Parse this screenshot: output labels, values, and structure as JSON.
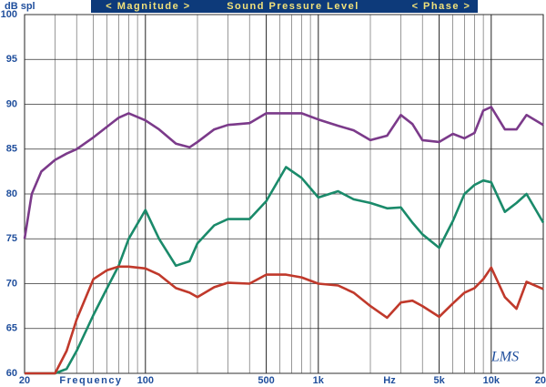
{
  "chart_data": {
    "type": "line",
    "header": [
      "< Magnitude >",
      "Sound Pressure Level",
      "< Phase >"
    ],
    "y_label": "dB spl",
    "x_label": "Frequency",
    "x_unit": "Hz",
    "logo": "LMS",
    "x": [
      20,
      22,
      25,
      30,
      35,
      40,
      50,
      60,
      70,
      80,
      100,
      120,
      150,
      180,
      200,
      250,
      300,
      400,
      500,
      650,
      800,
      1000,
      1300,
      1600,
      2000,
      2500,
      3000,
      3500,
      4000,
      5000,
      6000,
      7000,
      8000,
      9000,
      10000,
      12000,
      14000,
      16000,
      20000
    ],
    "series": [
      {
        "color": "#7b3a8a",
        "values": [
          75,
          80,
          82.5,
          83.8,
          84.5,
          85,
          86.3,
          87.5,
          88.5,
          89,
          88.2,
          87.2,
          85.6,
          85.2,
          85.8,
          87.2,
          87.7,
          87.9,
          89,
          89,
          89,
          88.3,
          87.6,
          87.1,
          86,
          86.5,
          88.8,
          87.8,
          86,
          85.8,
          86.7,
          86.2,
          86.8,
          89.3,
          89.7,
          87.2,
          87.2,
          88.8,
          87.7
        ]
      },
      {
        "color": "#1a8a6a",
        "values": [
          60,
          60,
          60,
          60,
          60.5,
          62.5,
          66.5,
          69.5,
          72,
          75,
          78.2,
          75,
          72,
          72.5,
          74.5,
          76.5,
          77.2,
          77.2,
          79.2,
          83,
          81.8,
          79.6,
          80.3,
          79.4,
          79,
          78.4,
          78.5,
          76.8,
          75.5,
          74,
          77,
          80,
          81,
          81.5,
          81.3,
          78,
          79,
          80,
          76.8
        ]
      },
      {
        "color": "#c0392b",
        "values": [
          60,
          60,
          60,
          60,
          62.5,
          66,
          70.5,
          71.5,
          71.9,
          71.9,
          71.7,
          71,
          69.5,
          69,
          68.5,
          69.6,
          70.1,
          70,
          71,
          71,
          70.7,
          70,
          69.8,
          69,
          67.5,
          66.2,
          67.9,
          68.1,
          67.5,
          66.3,
          67.8,
          69,
          69.5,
          70.5,
          71.8,
          68.5,
          67.2,
          70.2,
          69.4
        ]
      }
    ],
    "xlim": [
      20,
      20000
    ],
    "xlog": true,
    "xticks": [
      20,
      100,
      500,
      {
        "value": 1000,
        "label": "1k"
      },
      {
        "value": 5000,
        "label": "5k"
      },
      {
        "value": 10000,
        "label": "10k"
      },
      {
        "value": 20000,
        "label": "20k"
      }
    ],
    "x_minor_grid": [
      30,
      40,
      50,
      60,
      70,
      80,
      90,
      200,
      300,
      400,
      600,
      700,
      800,
      900,
      2000,
      3000,
      4000,
      6000,
      7000,
      8000,
      9000
    ],
    "ylim": [
      60,
      100
    ],
    "yticks": [
      60,
      65,
      70,
      75,
      80,
      85,
      90,
      95,
      100
    ],
    "grid": true
  }
}
